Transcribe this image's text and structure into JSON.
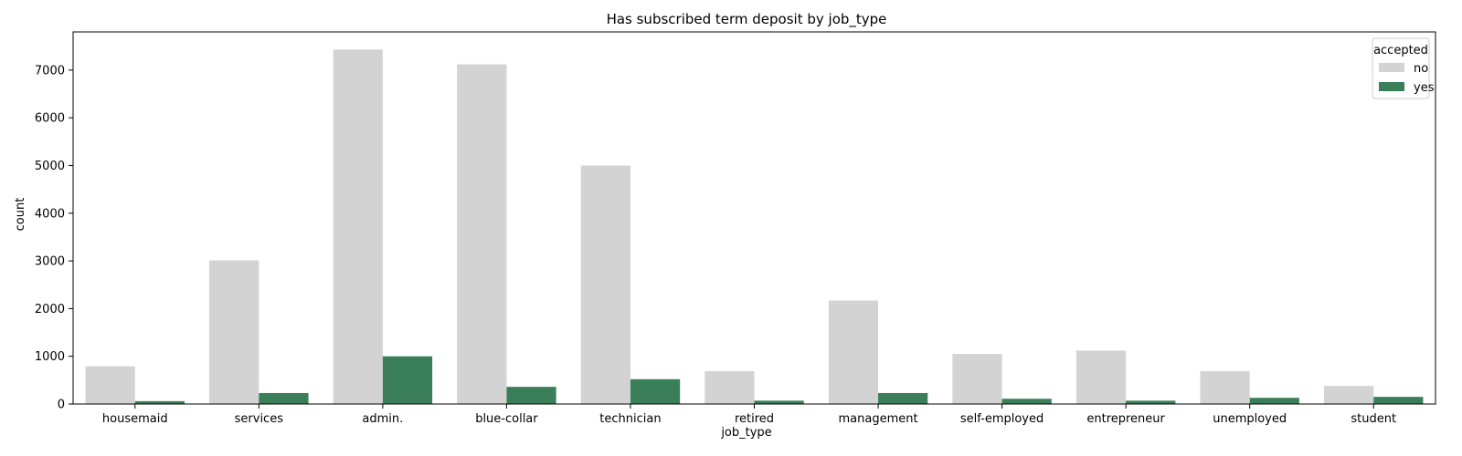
{
  "chart_data": {
    "type": "bar",
    "title": "Has subscribed term deposit by job_type",
    "xlabel": "job_type",
    "ylabel": "count",
    "categories": [
      "housemaid",
      "services",
      "admin.",
      "blue-collar",
      "technician",
      "retired",
      "management",
      "self-employed",
      "entrepreneur",
      "unemployed",
      "student"
    ],
    "series": [
      {
        "name": "no",
        "color": "#d3d3d3",
        "values": [
          790,
          3010,
          7430,
          7120,
          5000,
          690,
          2170,
          1050,
          1120,
          690,
          380
        ]
      },
      {
        "name": "yes",
        "color": "#3a7f57",
        "values": [
          60,
          230,
          1000,
          360,
          520,
          70,
          230,
          110,
          70,
          130,
          150
        ]
      }
    ],
    "ylim": [
      0,
      7800
    ],
    "yticks": [
      0,
      1000,
      2000,
      3000,
      4000,
      5000,
      6000,
      7000
    ],
    "legend": {
      "title": "accepted",
      "placement": "top-right"
    },
    "grid": false
  }
}
